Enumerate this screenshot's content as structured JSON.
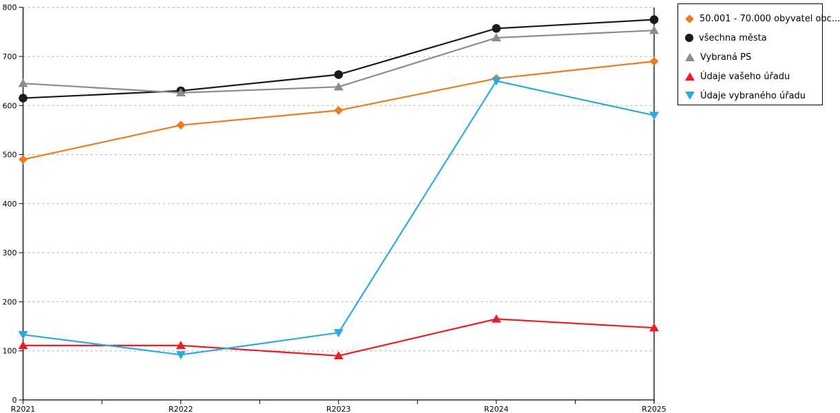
{
  "chart_data": {
    "type": "line",
    "categories": [
      "R2021",
      "R2022",
      "R2023",
      "R2024",
      "R2025"
    ],
    "series": [
      {
        "name": "50.001 - 70.000 obyvatel obc...",
        "marker": "diamond",
        "color": "#e87d22",
        "values": [
          490,
          560,
          590,
          655,
          690
        ]
      },
      {
        "name": "všechna města",
        "marker": "circle",
        "color": "#1a1a1a",
        "values": [
          615,
          630,
          663,
          757,
          775
        ]
      },
      {
        "name": "Vybraná PS",
        "marker": "triangle-up",
        "color": "#8c8c8c",
        "values": [
          645,
          626,
          638,
          738,
          753
        ]
      },
      {
        "name": "Údaje vašeho úřadu",
        "marker": "triangle-up",
        "color": "#ed1c24",
        "values": [
          111,
          111,
          90,
          165,
          147
        ]
      },
      {
        "name": "Údaje vybraného úřadu",
        "marker": "triangle-down",
        "color": "#29abe2",
        "values": [
          133,
          92,
          137,
          650,
          580
        ]
      }
    ],
    "yticks": [
      0,
      100,
      200,
      300,
      400,
      500,
      600,
      700,
      800
    ],
    "ylim": [
      0,
      800
    ],
    "xlabel": "",
    "ylabel": "",
    "title": "",
    "grid": "horizontal-dotted",
    "gridline_color": "#ababab",
    "axis_color": "#000000",
    "legend_position": "top-right"
  }
}
